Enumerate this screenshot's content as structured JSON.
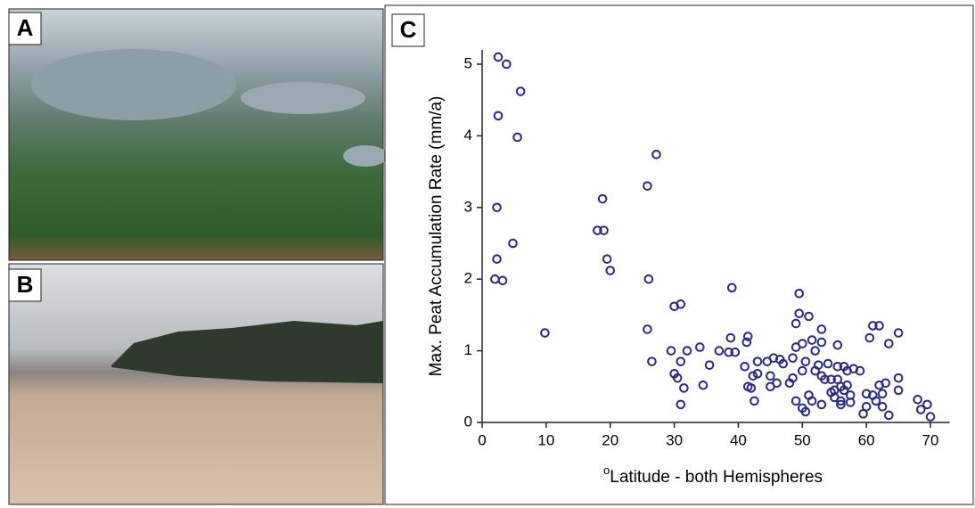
{
  "panel_labels": [
    "A",
    "B"
  ],
  "chart_data": {
    "type": "scatter",
    "panel_label": "C",
    "x_label_sup": "o",
    "x_label": "Latitude - both Hemispheres",
    "y_label": "Max. Peat Accumulation Rate (mm/a)",
    "xlim": [
      0,
      73
    ],
    "ylim": [
      0,
      5.2
    ],
    "xticks": [
      0,
      10,
      20,
      30,
      40,
      50,
      60,
      70
    ],
    "yticks": [
      0,
      1,
      2,
      3,
      4,
      5
    ],
    "color": "#2b2a85",
    "x": [
      2.5,
      3.8,
      6,
      2.5,
      5.5,
      2.3,
      4.8,
      2.3,
      2,
      3.2,
      9.8,
      18,
      18.8,
      19,
      19.5,
      20,
      25.8,
      27.2,
      26,
      25.8,
      26.5,
      30,
      31,
      29.5,
      30,
      30.5,
      31,
      31.5,
      31,
      32,
      34,
      34.5,
      35.5,
      37,
      38.5,
      38.8,
      39,
      39.5,
      41,
      41.3,
      41.5,
      41.5,
      42,
      42.3,
      42.5,
      43,
      43,
      44.5,
      45,
      45,
      45.5,
      46,
      46.5,
      47,
      48,
      48.5,
      48.5,
      49,
      49,
      49,
      49.5,
      49.5,
      50,
      50,
      50.5,
      50,
      50.5,
      51,
      51,
      51.5,
      51.5,
      52,
      52,
      52.5,
      53,
      53,
      53,
      53,
      53.5,
      54,
      54.5,
      54.5,
      55,
      55,
      55.5,
      55.5,
      55.5,
      56,
      56,
      56,
      56.5,
      56.5,
      57,
      57,
      57.5,
      57.5,
      58,
      59,
      59.5,
      60,
      60,
      60.5,
      61,
      61,
      61.5,
      62,
      62,
      62.5,
      62.5,
      63,
      63.5,
      63.5,
      65,
      65,
      65,
      68,
      68.5,
      69.5,
      70
    ],
    "y": [
      5.1,
      5.0,
      4.62,
      4.28,
      3.98,
      3.0,
      2.5,
      2.28,
      2,
      1.98,
      1.25,
      2.68,
      3.12,
      2.68,
      2.28,
      2.12,
      3.3,
      3.74,
      2,
      1.3,
      0.85,
      1.62,
      1.65,
      1.0,
      0.68,
      0.62,
      0.85,
      0.48,
      0.25,
      1.0,
      1.05,
      0.52,
      0.8,
      1.0,
      0.98,
      1.18,
      1.88,
      0.98,
      0.78,
      1.12,
      1.2,
      0.5,
      0.48,
      0.65,
      0.3,
      0.68,
      0.85,
      0.85,
      0.65,
      0.5,
      0.9,
      0.55,
      0.88,
      0.82,
      0.55,
      0.62,
      0.9,
      1.05,
      1.38,
      0.3,
      1.8,
      1.52,
      1.1,
      0.2,
      0.15,
      0.72,
      0.85,
      1.48,
      0.38,
      1.15,
      0.3,
      0.72,
      1.0,
      0.8,
      0.65,
      1.12,
      1.3,
      0.25,
      0.6,
      0.82,
      0.42,
      0.6,
      0.45,
      0.35,
      0.6,
      1.08,
      0.78,
      0.5,
      0.3,
      0.25,
      0.45,
      0.78,
      0.52,
      0.72,
      0.38,
      0.28,
      0.75,
      0.72,
      0.12,
      0.4,
      0.22,
      1.18,
      1.35,
      0.38,
      0.3,
      0.52,
      1.35,
      0.4,
      0.22,
      0.55,
      0.1,
      1.1,
      1.25,
      0.62,
      0.45,
      0.32,
      0.18,
      0.25,
      0.08
    ]
  }
}
